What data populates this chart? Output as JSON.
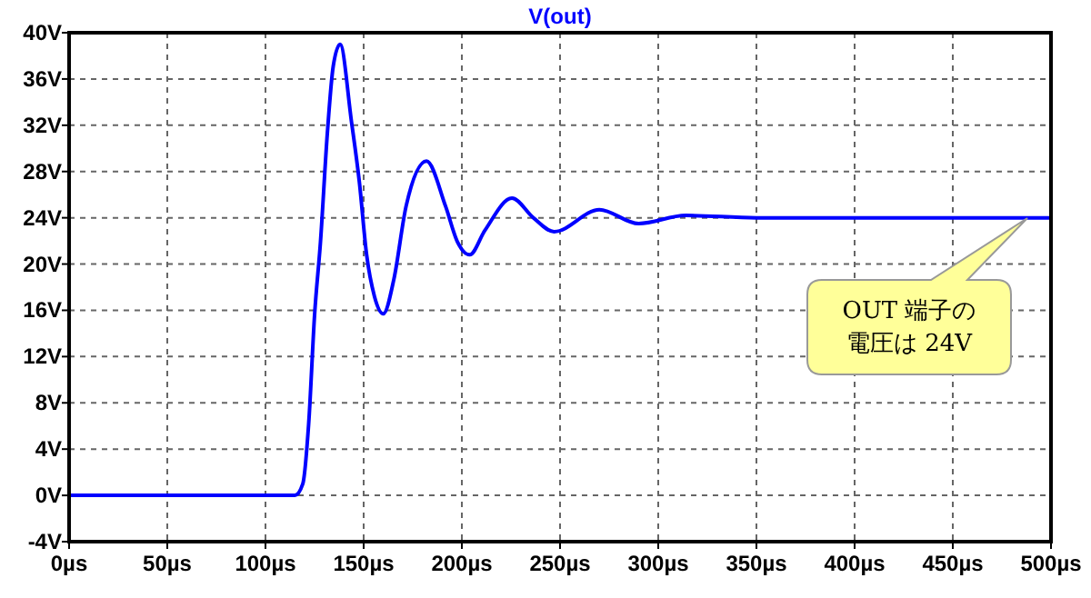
{
  "chart_data": {
    "type": "line",
    "title": "V(out)",
    "x": [
      0,
      50,
      100,
      115,
      119,
      122,
      125,
      128,
      131.5,
      134.5,
      138,
      143.8,
      147.8,
      151.5,
      155.5,
      160,
      165.4,
      171.6,
      182,
      191.7,
      197.8,
      204,
      211.7,
      225.5,
      236.4,
      247,
      270,
      290,
      314,
      350,
      400,
      450,
      500
    ],
    "series": [
      {
        "color": "#0000ff",
        "values": [
          0,
          0,
          0,
          0,
          1,
          6.2,
          15.6,
          21.9,
          31.3,
          37.1,
          39,
          32.3,
          27.1,
          20.8,
          17.2,
          15.7,
          18.7,
          25,
          28.9,
          25,
          21.9,
          20.8,
          22.9,
          25.7,
          24,
          22.8,
          24.7,
          23.5,
          24.2,
          24,
          24,
          24,
          24
        ]
      }
    ],
    "xlim": [
      0,
      500
    ],
    "xticks": [
      {
        "value": 0,
        "label": "0µs"
      },
      {
        "value": 50,
        "label": "50µs"
      },
      {
        "value": 100,
        "label": "100µs"
      },
      {
        "value": 150,
        "label": "150µs"
      },
      {
        "value": 200,
        "label": "200µs"
      },
      {
        "value": 250,
        "label": "250µs"
      },
      {
        "value": 300,
        "label": "300µs"
      },
      {
        "value": 350,
        "label": "350µs"
      },
      {
        "value": 400,
        "label": "400µs"
      },
      {
        "value": 450,
        "label": "450µs"
      },
      {
        "value": 500,
        "label": "500µs"
      }
    ],
    "ylim": [
      -4,
      40
    ],
    "yticks": [
      {
        "value": -4,
        "label": "-4V"
      },
      {
        "value": 0,
        "label": "0V"
      },
      {
        "value": 4,
        "label": "4V"
      },
      {
        "value": 8,
        "label": "8V"
      },
      {
        "value": 12,
        "label": "12V"
      },
      {
        "value": 16,
        "label": "16V"
      },
      {
        "value": 20,
        "label": "20V"
      },
      {
        "value": 24,
        "label": "24V"
      },
      {
        "value": 28,
        "label": "28V"
      },
      {
        "value": 32,
        "label": "32V"
      },
      {
        "value": 36,
        "label": "36V"
      },
      {
        "value": 40,
        "label": "40V"
      }
    ],
    "grid": true,
    "line_style": "solid",
    "marker": "none",
    "annotations": [
      "OUT 端子の電圧は 24V"
    ]
  }
}
